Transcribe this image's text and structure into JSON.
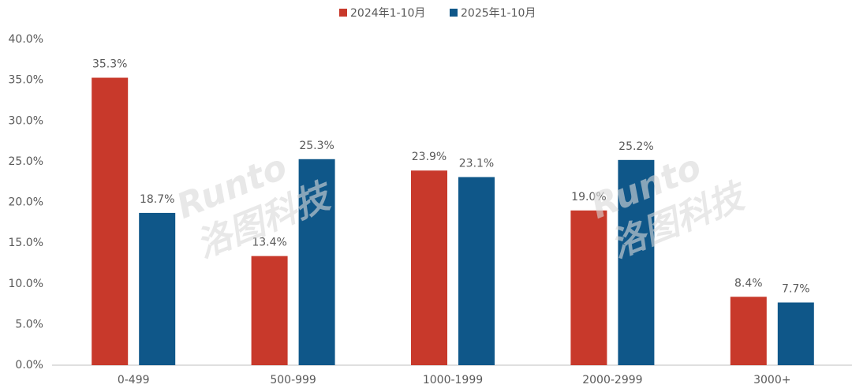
{
  "chart_data": {
    "type": "bar",
    "categories": [
      "0-499",
      "500-999",
      "1000-1999",
      "2000-2999",
      "3000+"
    ],
    "series": [
      {
        "name": "2024年1-10月",
        "color": "#c8392b",
        "values": [
          35.3,
          13.4,
          23.9,
          19.0,
          8.4
        ],
        "value_labels": [
          "35.3%",
          "13.4%",
          "23.9%",
          "19.0%",
          "8.4%"
        ]
      },
      {
        "name": "2025年1-10月",
        "color": "#0f5789",
        "values": [
          18.7,
          25.3,
          23.1,
          25.2,
          7.7
        ],
        "value_labels": [
          "18.7%",
          "25.3%",
          "23.1%",
          "25.2%",
          "7.7%"
        ]
      }
    ],
    "ylim": [
      0,
      40
    ],
    "yticks": [
      {
        "value": 0,
        "label": "0.0%"
      },
      {
        "value": 5,
        "label": "5.0%"
      },
      {
        "value": 10,
        "label": "10.0%"
      },
      {
        "value": 15,
        "label": "15.0%"
      },
      {
        "value": 20,
        "label": "20.0%"
      },
      {
        "value": 25,
        "label": "25.0%"
      },
      {
        "value": 30,
        "label": "30.0%"
      },
      {
        "value": 35,
        "label": "35.0%"
      },
      {
        "value": 40,
        "label": "40.0%"
      }
    ],
    "grid": false,
    "legend": "top",
    "watermark": [
      "Runto",
      "洛图科技"
    ]
  }
}
